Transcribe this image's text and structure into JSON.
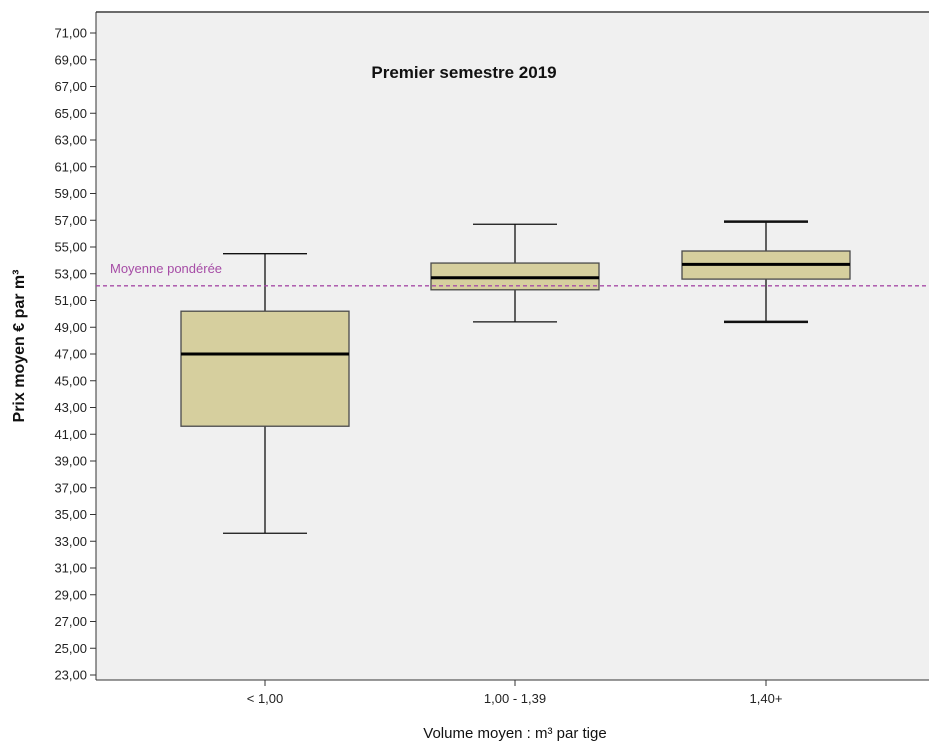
{
  "chart_data": {
    "type": "boxplot",
    "title": "Premier semestre 2019",
    "xlabel": "Volume moyen : m³ par tige",
    "ylabel": "Prix moyen € par m³",
    "ylim": [
      23,
      71
    ],
    "yticks": [
      "23,00",
      "25,00",
      "27,00",
      "29,00",
      "31,00",
      "33,00",
      "35,00",
      "37,00",
      "39,00",
      "41,00",
      "43,00",
      "45,00",
      "47,00",
      "49,00",
      "51,00",
      "53,00",
      "55,00",
      "57,00",
      "59,00",
      "61,00",
      "63,00",
      "65,00",
      "67,00",
      "69,00",
      "71,00"
    ],
    "categories": [
      "< 1,00",
      "1,00 - 1,39",
      "1,40+"
    ],
    "boxes": [
      {
        "category": "< 1,00",
        "min": 33.6,
        "q1": 41.6,
        "median": 47.0,
        "q3": 50.2,
        "max": 54.5
      },
      {
        "category": "1,00 - 1,39",
        "min": 49.4,
        "q1": 51.8,
        "median": 52.7,
        "q3": 53.8,
        "max": 56.7
      },
      {
        "category": "1,40+",
        "min": 49.4,
        "q1": 52.6,
        "median": 53.7,
        "q3": 54.7,
        "max": 56.9
      }
    ],
    "reference_line": {
      "label": "Moyenne pondérée",
      "value": 52.1,
      "color": "#a64ca6"
    },
    "box_fill": "#d6cf9e",
    "plot_background": "#f0f0f0",
    "grid": false
  }
}
